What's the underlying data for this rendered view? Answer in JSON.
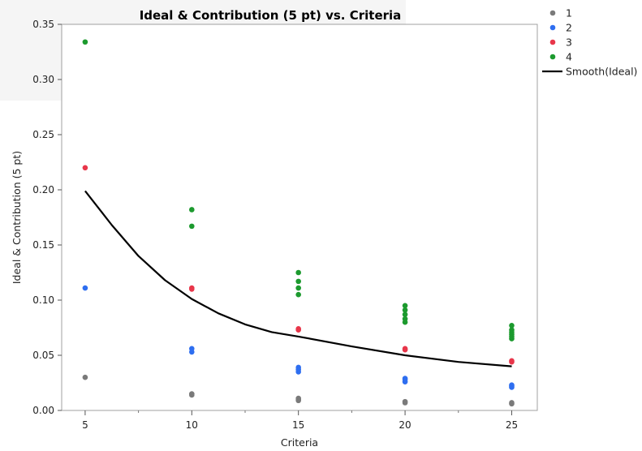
{
  "chart_data": {
    "type": "scatter",
    "title": "Ideal & Contribution (5 pt) vs. Criteria",
    "xlabel": "Criteria",
    "ylabel": "Ideal & Contribution (5 pt)",
    "xlim": [
      3.9,
      26.2
    ],
    "ylim": [
      0,
      0.35
    ],
    "x_ticks": [
      5,
      10,
      15,
      20,
      25
    ],
    "x_minor_ticks": [
      7.5,
      12.5,
      17.5,
      22.5
    ],
    "y_ticks": [
      0.0,
      0.05,
      0.1,
      0.15,
      0.2,
      0.25,
      0.3,
      0.35
    ],
    "y_tick_labels": [
      "0.00",
      "0.05",
      "0.10",
      "0.15",
      "0.20",
      "0.25",
      "0.30",
      "0.35"
    ],
    "grid": false,
    "legend_position": "right",
    "series": [
      {
        "name": "1",
        "color": "#7a7a7a",
        "points": [
          [
            5,
            0.03
          ],
          [
            10,
            0.014
          ],
          [
            10,
            0.015
          ],
          [
            15,
            0.009
          ],
          [
            15,
            0.01
          ],
          [
            15,
            0.011
          ],
          [
            20,
            0.007
          ],
          [
            20,
            0.008
          ],
          [
            25,
            0.006
          ],
          [
            25,
            0.007
          ]
        ]
      },
      {
        "name": "2",
        "color": "#2e6ef0",
        "points": [
          [
            5,
            0.111
          ],
          [
            10,
            0.053
          ],
          [
            10,
            0.056
          ],
          [
            15,
            0.035
          ],
          [
            15,
            0.037
          ],
          [
            15,
            0.039
          ],
          [
            20,
            0.026
          ],
          [
            20,
            0.028
          ],
          [
            20,
            0.029
          ],
          [
            25,
            0.021
          ],
          [
            25,
            0.022
          ],
          [
            25,
            0.023
          ]
        ]
      },
      {
        "name": "3",
        "color": "#e8364a",
        "points": [
          [
            5,
            0.22
          ],
          [
            10,
            0.11
          ],
          [
            10,
            0.111
          ],
          [
            15,
            0.073
          ],
          [
            15,
            0.074
          ],
          [
            20,
            0.055
          ],
          [
            20,
            0.056
          ],
          [
            25,
            0.044
          ],
          [
            25,
            0.045
          ]
        ]
      },
      {
        "name": "4",
        "color": "#1c9a2e",
        "points": [
          [
            5,
            0.334
          ],
          [
            10,
            0.167
          ],
          [
            10,
            0.182
          ],
          [
            15,
            0.105
          ],
          [
            15,
            0.111
          ],
          [
            15,
            0.117
          ],
          [
            15,
            0.125
          ],
          [
            20,
            0.08
          ],
          [
            20,
            0.083
          ],
          [
            20,
            0.087
          ],
          [
            20,
            0.091
          ],
          [
            20,
            0.095
          ],
          [
            25,
            0.065
          ],
          [
            25,
            0.067
          ],
          [
            25,
            0.069
          ],
          [
            25,
            0.071
          ],
          [
            25,
            0.073
          ],
          [
            25,
            0.077
          ]
        ]
      }
    ],
    "smooth": {
      "name": "Smooth(Ideal)",
      "color": "#000000",
      "points": [
        [
          5,
          0.199
        ],
        [
          6.25,
          0.168
        ],
        [
          7.5,
          0.14
        ],
        [
          8.75,
          0.118
        ],
        [
          10,
          0.101
        ],
        [
          11.25,
          0.088
        ],
        [
          12.5,
          0.078
        ],
        [
          13.75,
          0.071
        ],
        [
          15,
          0.067
        ],
        [
          17.5,
          0.058
        ],
        [
          20,
          0.05
        ],
        [
          22.5,
          0.044
        ],
        [
          25,
          0.04
        ]
      ]
    }
  }
}
